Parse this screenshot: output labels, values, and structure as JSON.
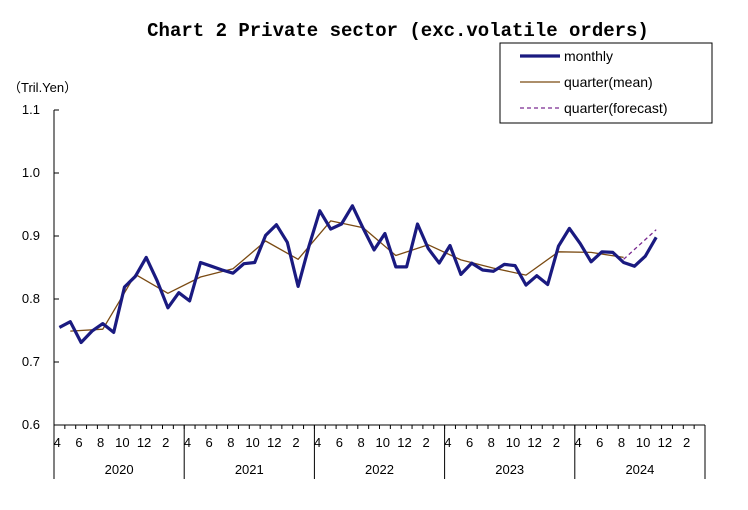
{
  "chart_data": {
    "type": "line",
    "title": "Chart 2 Private sector (exc.volatile orders)",
    "unit_label": "（Tril.Yen）",
    "ylim": [
      0.6,
      1.1
    ],
    "y_ticks": [
      "0.6",
      "0.7",
      "0.8",
      "0.9",
      "1.0",
      "1.1"
    ],
    "x_month_labels": [
      "4",
      "6",
      "8",
      "10",
      "12",
      "2",
      "4",
      "6",
      "8",
      "10",
      "12",
      "2",
      "4",
      "6",
      "8",
      "10",
      "12",
      "2",
      "4",
      "6",
      "8",
      "10",
      "12",
      "2",
      "4",
      "6",
      "8",
      "10",
      "12",
      "2"
    ],
    "x_year_labels": [
      "2020",
      "2021",
      "2022",
      "2023",
      "2024"
    ],
    "series": [
      {
        "name": "monthly",
        "color": "#1a1a80",
        "style": "thick",
        "start_index": 0,
        "values": [
          0.755,
          0.764,
          0.731,
          0.749,
          0.761,
          0.747,
          0.819,
          0.836,
          0.866,
          0.829,
          0.786,
          0.81,
          0.797,
          0.858,
          0.852,
          0.846,
          0.841,
          0.856,
          0.858,
          0.901,
          0.918,
          0.89,
          0.82,
          0.884,
          0.94,
          0.911,
          0.919,
          0.948,
          0.912,
          0.878,
          0.904,
          0.851,
          0.851,
          0.919,
          0.88,
          0.857,
          0.885,
          0.839,
          0.857,
          0.846,
          0.844,
          0.855,
          0.853,
          0.822,
          0.837,
          0.823,
          0.884,
          0.912,
          0.888,
          0.859,
          0.875,
          0.874,
          0.858,
          0.852,
          0.868,
          0.898
        ]
      },
      {
        "name": "quarter(mean)",
        "color": "#7a4a12",
        "style": "thin",
        "points": [
          [
            1,
            0.749
          ],
          [
            4,
            0.752
          ],
          [
            7,
            0.839
          ],
          [
            10,
            0.809
          ],
          [
            13,
            0.835
          ],
          [
            16,
            0.848
          ],
          [
            19,
            0.892
          ],
          [
            22,
            0.863
          ],
          [
            25,
            0.924
          ],
          [
            28,
            0.913
          ],
          [
            31,
            0.869
          ],
          [
            34,
            0.886
          ],
          [
            37,
            0.862
          ],
          [
            40,
            0.849
          ],
          [
            43,
            0.838
          ],
          [
            46,
            0.875
          ],
          [
            49,
            0.874
          ],
          [
            52,
            0.866
          ]
        ]
      },
      {
        "name": "quarter(forecast)",
        "color": "#7a2a90",
        "style": "dashed",
        "points": [
          [
            52,
            0.863
          ],
          [
            55,
            0.91
          ]
        ]
      }
    ],
    "legend": [
      "monthly",
      "quarter(mean)",
      "quarter(forecast)"
    ],
    "legend_position": "top-right"
  }
}
